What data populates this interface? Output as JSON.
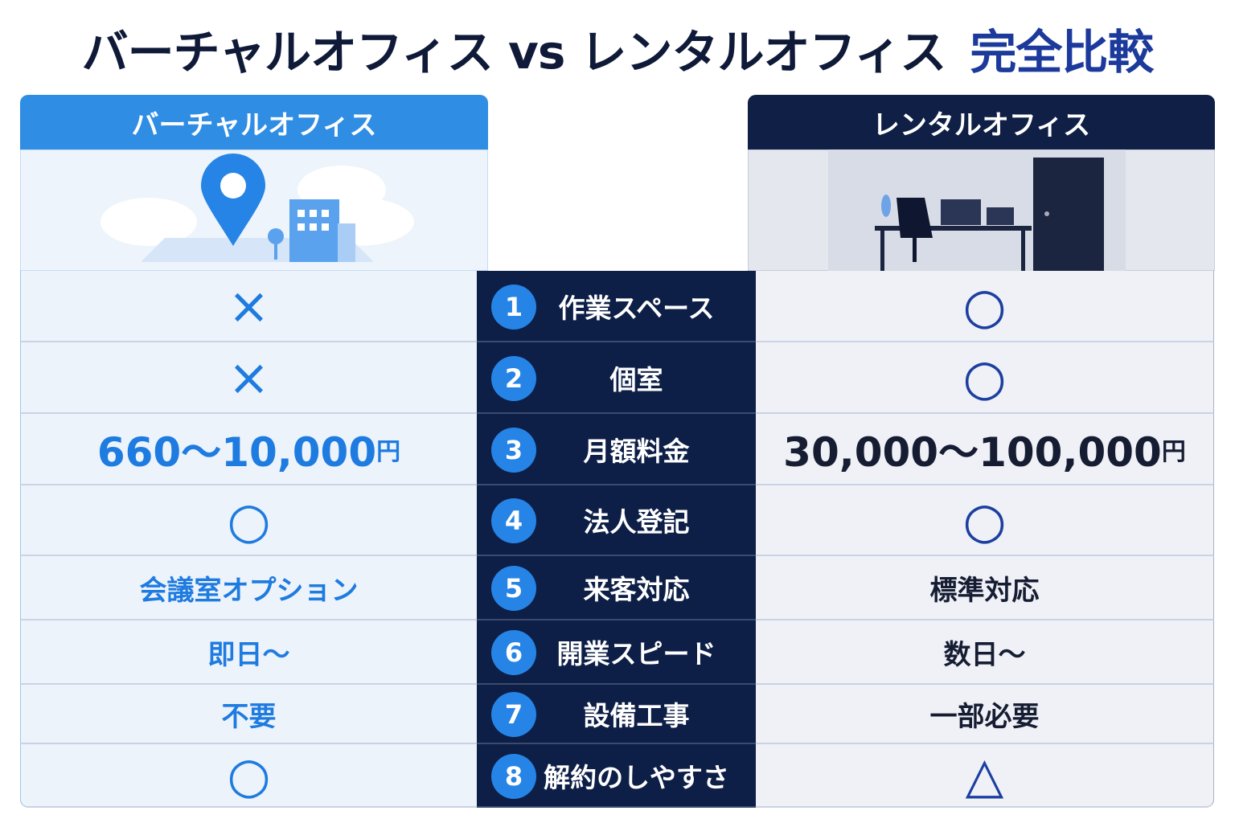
{
  "header": {
    "title": "バーチャルオフィス vs レンタルオフィス",
    "title_emphasis": "完全比較"
  },
  "columns": {
    "left": "バーチャルオフィス",
    "right": "レンタルオフィス"
  },
  "rows": [
    {
      "number": "1",
      "item": "作業スペース",
      "left": "×",
      "right": "○"
    },
    {
      "number": "2",
      "item": "個室",
      "left": "×",
      "right": "○"
    },
    {
      "number": "3",
      "item": "月額料金",
      "left": "660〜10,000",
      "left_unit": "円",
      "right": "30,000〜100,000",
      "right_unit": "円"
    },
    {
      "number": "4",
      "item": "法人登記",
      "left": "○",
      "right": "○"
    },
    {
      "number": "5",
      "item": "来客対応",
      "left": "会議室オプション",
      "right": "標準対応"
    },
    {
      "number": "6",
      "item": "開業スピード",
      "left": "即日〜",
      "right": "数日〜"
    },
    {
      "number": "7",
      "item": "設備工事",
      "left": "不要",
      "right": "一部必要"
    },
    {
      "number": "8",
      "item": "解約のしやすさ",
      "left": "○",
      "right": "△"
    }
  ]
}
